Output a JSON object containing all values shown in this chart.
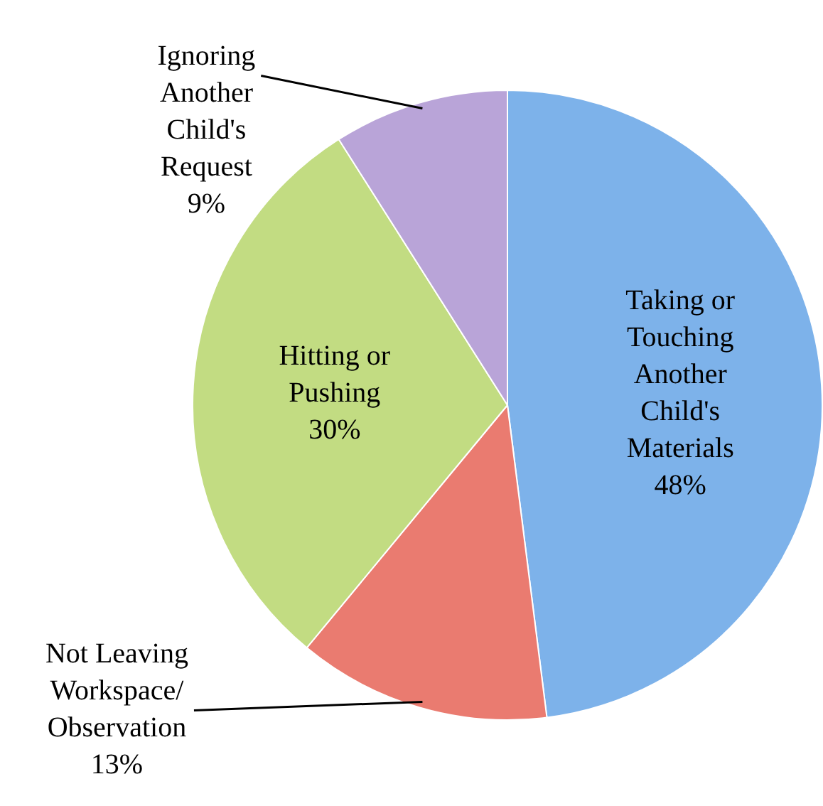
{
  "chart_data": {
    "type": "pie",
    "categories": [
      "Taking or Touching Another Child's Materials",
      "Not Leaving Workspace/ Observation",
      "Hitting or Pushing",
      "Ignoring Another Child's Request"
    ],
    "values": [
      48,
      13,
      30,
      9
    ],
    "value_labels": [
      "48%",
      "13%",
      "30%",
      "9%"
    ],
    "colors": [
      "#7db2ea",
      "#ea7b70",
      "#c2dc82",
      "#b9a4d8"
    ],
    "legend": false
  }
}
